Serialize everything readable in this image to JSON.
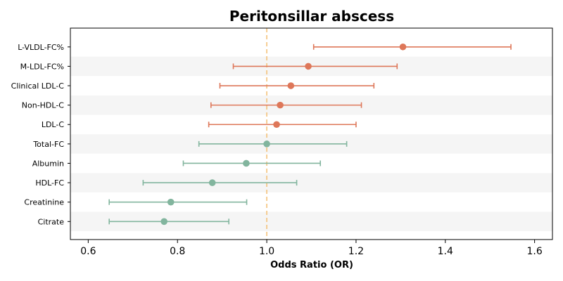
{
  "chart_data": {
    "type": "forest",
    "title": "Peritonsillar abscess",
    "xlabel": "Odds Ratio (OR)",
    "ylabel": "",
    "xlim": [
      0.56,
      1.64
    ],
    "xticks": [
      "0.6",
      "0.8",
      "1.0",
      "1.2",
      "1.4",
      "1.6"
    ],
    "reference_line": 1.0,
    "colors": {
      "positive": "#de7759",
      "negative": "#82b59e",
      "reference": "#f5c27a",
      "stripe": "#f5f5f5"
    },
    "rows": [
      {
        "label": "L-VLDL-FC%",
        "or": 1.305,
        "lo": 1.105,
        "hi": 1.547
      },
      {
        "label": "M-LDL-FC%",
        "or": 1.093,
        "lo": 0.925,
        "hi": 1.292
      },
      {
        "label": "Clinical LDL-C",
        "or": 1.054,
        "lo": 0.895,
        "hi": 1.24
      },
      {
        "label": "Non-HDL-C",
        "or": 1.03,
        "lo": 0.875,
        "hi": 1.212
      },
      {
        "label": "LDL-C",
        "or": 1.022,
        "lo": 0.87,
        "hi": 1.2
      },
      {
        "label": "Total-FC",
        "or": 1.0,
        "lo": 0.848,
        "hi": 1.179
      },
      {
        "label": "Albumin",
        "or": 0.954,
        "lo": 0.813,
        "hi": 1.12
      },
      {
        "label": "HDL-FC",
        "or": 0.878,
        "lo": 0.723,
        "hi": 1.067
      },
      {
        "label": "Creatinine",
        "or": 0.785,
        "lo": 0.647,
        "hi": 0.955
      },
      {
        "label": "Citrate",
        "or": 0.77,
        "lo": 0.647,
        "hi": 0.915
      }
    ]
  }
}
